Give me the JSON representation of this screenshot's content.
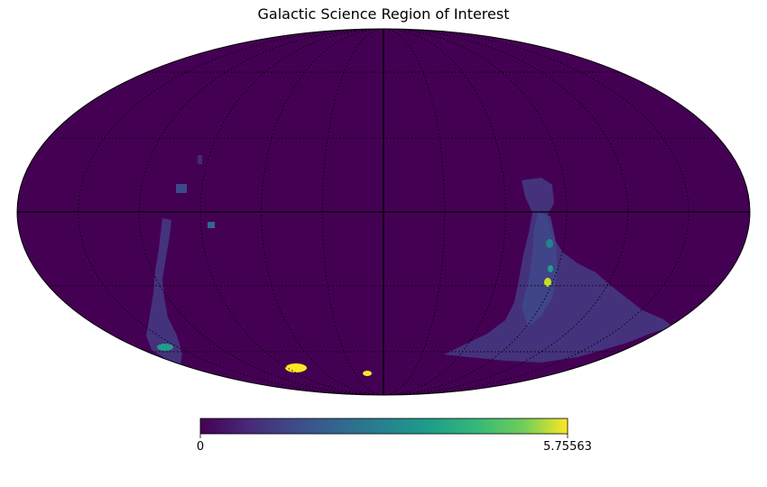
{
  "chart_data": {
    "type": "heatmap",
    "projection": "mollweide",
    "title": "Galactic Science Region of Interest",
    "graticule": true,
    "colormap": "viridis",
    "colorbar": {
      "placement": "bottom",
      "min_label": "0",
      "max_label": "5.75563",
      "range": [
        0,
        5.75563
      ]
    },
    "regions": [
      {
        "name": "southern-galactic-plane-right",
        "lon": [
          -95,
          -128
        ],
        "lat": [
          -2,
          -55
        ],
        "value": 1.2
      },
      {
        "name": "southern-galactic-plane-left",
        "lon": [
          82,
          76
        ],
        "lat": [
          -8,
          -54
        ],
        "value": 1.0
      },
      {
        "name": "bright-patch-lower-left",
        "lon": [
          32,
          27
        ],
        "lat": [
          -70,
          -72
        ],
        "value": 5.75563
      },
      {
        "name": "bright-patch-lower-center",
        "lon": [
          8,
          7
        ],
        "lat": [
          -79,
          -80
        ],
        "value": 5.75563
      },
      {
        "name": "bright-patch-right",
        "lon": [
          -113
        ],
        "lat": [
          -33
        ],
        "value": 5.2
      },
      {
        "name": "teal-patch-left",
        "lon": [
          86
        ],
        "lat": [
          -63
        ],
        "value": 3.2
      },
      {
        "name": "teal-patch-right",
        "lon": [
          -113
        ],
        "lat": [
          -20
        ],
        "value": 2.6
      }
    ]
  }
}
